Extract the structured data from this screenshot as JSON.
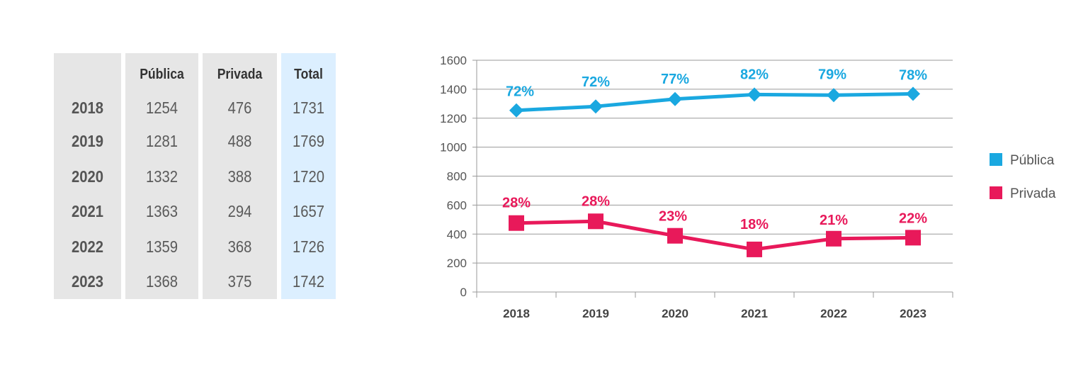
{
  "table": {
    "headers": [
      "",
      "Pública",
      "Privada",
      "Total"
    ],
    "rows": [
      {
        "year": "2018",
        "publica": "1254",
        "privada": "476",
        "total": "1731"
      },
      {
        "year": "2019",
        "publica": "1281",
        "privada": "488",
        "total": "1769"
      },
      {
        "year": "2020",
        "publica": "1332",
        "privada": "388",
        "total": "1720"
      },
      {
        "year": "2021",
        "publica": "1363",
        "privada": "294",
        "total": "1657"
      },
      {
        "year": "2022",
        "publica": "1359",
        "privada": "368",
        "total": "1726"
      },
      {
        "year": "2023",
        "publica": "1368",
        "privada": "375",
        "total": "1742"
      }
    ]
  },
  "chart_data": {
    "type": "line",
    "categories": [
      "2018",
      "2019",
      "2020",
      "2021",
      "2022",
      "2023"
    ],
    "ylim": [
      0,
      1600
    ],
    "yticks": [
      0,
      200,
      400,
      600,
      800,
      1000,
      1200,
      1400,
      1600
    ],
    "grid": true,
    "legend_position": "right",
    "series": [
      {
        "name": "Pública",
        "color": "#1aa8e0",
        "marker": "diamond",
        "values": [
          1254,
          1281,
          1332,
          1363,
          1359,
          1368
        ],
        "labels": [
          "72%",
          "72%",
          "77%",
          "82%",
          "79%",
          "78%"
        ]
      },
      {
        "name": "Privada",
        "color": "#e8195a",
        "marker": "square",
        "values": [
          476,
          488,
          388,
          294,
          368,
          375
        ],
        "labels": [
          "28%",
          "28%",
          "23%",
          "18%",
          "21%",
          "22%"
        ]
      }
    ]
  }
}
